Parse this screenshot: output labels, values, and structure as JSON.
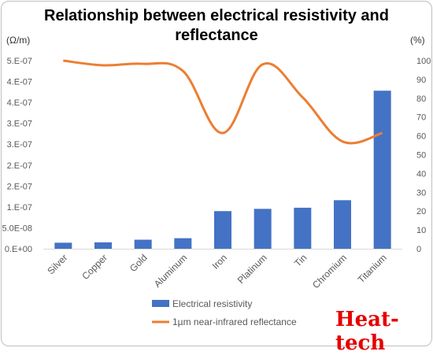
{
  "chart_data": {
    "type": "bar+line",
    "title": "Relationship between electrical resistivity and reflectance",
    "left_unit": "(Ω/m)",
    "right_unit": "(%)",
    "categories": [
      "Silver",
      "Copper",
      "Gold",
      "Aluminum",
      "Iron",
      "Platinum",
      "Tin",
      "Chromium",
      "Titanium"
    ],
    "y_left": {
      "ylim": [
        0,
        5e-07
      ],
      "ticks": [
        "0.E+00",
        "5.0E-08",
        "1.E-07",
        "2.E-07",
        "2.E-07",
        "3.E-07",
        "3.E-07",
        "4.E-07",
        "4.E-07",
        "5.E-07"
      ]
    },
    "y_right": {
      "ylim": [
        0,
        100
      ],
      "ticks": [
        "0",
        "10",
        "20",
        "30",
        "40",
        "50",
        "60",
        "70",
        "80",
        "90",
        "100"
      ]
    },
    "series": [
      {
        "name": "Electrical resistivity",
        "type": "bar",
        "axis": "left",
        "color": "#4472C4",
        "values": [
          1.6e-08,
          1.7e-08,
          2.4e-08,
          2.8e-08,
          1e-07,
          1.06e-07,
          1.09e-07,
          1.29e-07,
          4.2e-07
        ]
      },
      {
        "name": "1µm near-infrared reflectance",
        "type": "line",
        "axis": "right",
        "color": "#ED7D31",
        "values": [
          100,
          97.5,
          98.3,
          94.5,
          61.5,
          98,
          80.5,
          57,
          61.5
        ]
      }
    ],
    "grid": false,
    "legend": "bottom"
  },
  "logo": {
    "text": "Heat-tech"
  }
}
